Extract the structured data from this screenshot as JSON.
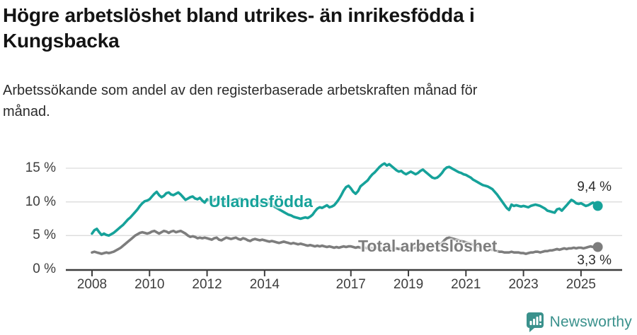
{
  "header": {
    "title_lines": [
      "Högre arbetslöshet bland utrikes- än inrikesfödda i",
      "Kungsbacka"
    ],
    "subtitle_lines": [
      "Arbetssökande som andel av den registerbaserade arbetskraften månad för",
      "månad."
    ]
  },
  "colors": {
    "series1": "#16a29a",
    "series2": "#7d7d7d",
    "grid": "#dcdcdc",
    "axis": "#3d3d3d",
    "title_text": "#141414",
    "logo": "#3a918c"
  },
  "logo": {
    "brand": "Newsworthy",
    "icon": "speech-bubble-bar-chart-icon"
  },
  "chart_data": {
    "type": "line",
    "title": "Högre arbetslöshet bland utrikes- än inrikesfödda i Kungsbacka",
    "subtitle": "Arbetssökande som andel av den registerbaserade arbetskraften månad för månad.",
    "x_unit": "month",
    "x_start": "2008-01",
    "x_end": "2025-08",
    "ylim": [
      0,
      16.5
    ],
    "grid": "horizontal",
    "legend_position": "inline-labels",
    "yticks": [
      {
        "value": 0,
        "label": "0 %"
      },
      {
        "value": 5,
        "label": "5 %"
      },
      {
        "value": 10,
        "label": "10 %"
      },
      {
        "value": 15,
        "label": "15 %"
      }
    ],
    "xticks": [
      {
        "value": 2008,
        "label": "2008"
      },
      {
        "value": 2010,
        "label": "2010"
      },
      {
        "value": 2012,
        "label": "2012"
      },
      {
        "value": 2014,
        "label": "2014"
      },
      {
        "value": 2017,
        "label": "2017"
      },
      {
        "value": 2019,
        "label": "2019"
      },
      {
        "value": 2021,
        "label": "2021"
      },
      {
        "value": 2023,
        "label": "2023"
      },
      {
        "value": 2025,
        "label": "2025"
      }
    ],
    "series": [
      {
        "name": "Utlandsfödda",
        "color": "#16a29a",
        "end_label": "9,4 %",
        "end_value": 9.4,
        "values": [
          5.3,
          5.8,
          6.0,
          5.5,
          5.1,
          5.3,
          5.1,
          5.0,
          5.2,
          5.4,
          5.7,
          6.0,
          6.3,
          6.6,
          7.0,
          7.4,
          7.7,
          8.1,
          8.5,
          8.9,
          9.4,
          9.8,
          10.1,
          10.2,
          10.4,
          10.8,
          11.2,
          11.5,
          11.0,
          10.7,
          10.9,
          11.3,
          11.4,
          11.1,
          11.0,
          11.2,
          11.4,
          11.1,
          10.7,
          10.3,
          10.5,
          10.7,
          10.8,
          10.5,
          10.4,
          10.6,
          10.2,
          9.9,
          10.4,
          10.2,
          10.0,
          10.3,
          10.5,
          10.3,
          10.1,
          9.9,
          10.1,
          10.3,
          10.2,
          10.0,
          10.2,
          10.4,
          10.5,
          10.3,
          10.1,
          10.0,
          10.2,
          10.3,
          10.1,
          9.9,
          9.8,
          10.0,
          10.0,
          9.9,
          9.7,
          9.5,
          9.3,
          9.1,
          8.9,
          8.7,
          8.5,
          8.3,
          8.1,
          8.0,
          7.8,
          7.7,
          7.6,
          7.5,
          7.6,
          7.7,
          7.6,
          7.8,
          8.1,
          8.6,
          9.0,
          9.2,
          9.1,
          9.3,
          9.5,
          9.2,
          9.3,
          9.5,
          9.9,
          10.4,
          11.0,
          11.7,
          12.2,
          12.4,
          12.0,
          11.5,
          11.2,
          11.6,
          12.3,
          12.6,
          12.9,
          13.2,
          13.7,
          14.1,
          14.4,
          14.8,
          15.2,
          15.5,
          15.7,
          15.4,
          15.6,
          15.3,
          15.0,
          14.7,
          14.5,
          14.6,
          14.3,
          14.1,
          14.3,
          14.5,
          14.3,
          14.1,
          14.3,
          14.6,
          14.8,
          14.5,
          14.2,
          13.9,
          13.6,
          13.5,
          13.6,
          13.9,
          14.3,
          14.8,
          15.1,
          15.2,
          15.0,
          14.8,
          14.6,
          14.4,
          14.3,
          14.1,
          14.0,
          13.8,
          13.6,
          13.3,
          13.1,
          12.9,
          12.7,
          12.5,
          12.4,
          12.3,
          12.1,
          11.9,
          11.5,
          11.1,
          10.6,
          10.1,
          9.6,
          9.1,
          8.8,
          9.6,
          9.4,
          9.5,
          9.4,
          9.3,
          9.4,
          9.3,
          9.2,
          9.4,
          9.5,
          9.6,
          9.5,
          9.4,
          9.2,
          9.0,
          8.7,
          8.6,
          8.5,
          8.4,
          8.9,
          9.0,
          8.7,
          9.1,
          9.5,
          9.9,
          10.3,
          10.1,
          9.8,
          9.7,
          9.8,
          9.6,
          9.4,
          9.5,
          9.7,
          9.9,
          9.6,
          9.4
        ]
      },
      {
        "name": "Total arbetslöshet",
        "color": "#7d7d7d",
        "end_label": "3,3 %",
        "end_value": 3.3,
        "values": [
          2.5,
          2.6,
          2.5,
          2.4,
          2.3,
          2.4,
          2.5,
          2.4,
          2.5,
          2.6,
          2.8,
          3.0,
          3.2,
          3.5,
          3.8,
          4.1,
          4.4,
          4.7,
          5.0,
          5.2,
          5.4,
          5.5,
          5.4,
          5.3,
          5.4,
          5.6,
          5.7,
          5.5,
          5.3,
          5.5,
          5.7,
          5.6,
          5.4,
          5.6,
          5.7,
          5.5,
          5.6,
          5.7,
          5.5,
          5.3,
          5.0,
          4.8,
          4.9,
          4.8,
          4.6,
          4.7,
          4.6,
          4.7,
          4.6,
          4.5,
          4.4,
          4.6,
          4.7,
          4.4,
          4.3,
          4.5,
          4.7,
          4.6,
          4.5,
          4.6,
          4.7,
          4.5,
          4.4,
          4.6,
          4.5,
          4.3,
          4.2,
          4.4,
          4.5,
          4.4,
          4.3,
          4.4,
          4.3,
          4.2,
          4.1,
          4.2,
          4.1,
          4.0,
          3.9,
          4.0,
          4.1,
          4.0,
          3.9,
          3.8,
          3.9,
          3.8,
          3.7,
          3.8,
          3.7,
          3.6,
          3.5,
          3.6,
          3.5,
          3.4,
          3.5,
          3.4,
          3.5,
          3.4,
          3.3,
          3.4,
          3.3,
          3.2,
          3.3,
          3.2,
          3.3,
          3.4,
          3.3,
          3.4,
          3.4,
          3.3,
          3.2,
          3.3,
          3.2,
          3.1,
          3.2,
          3.1,
          3.2,
          3.1,
          3.2,
          3.1,
          3.2,
          3.1,
          3.0,
          3.1,
          3.0,
          3.1,
          3.0,
          3.1,
          3.0,
          3.1,
          3.0,
          3.1,
          3.1,
          3.2,
          3.1,
          3.2,
          3.1,
          3.2,
          3.3,
          3.2,
          3.1,
          3.2,
          3.3,
          3.4,
          3.5,
          3.6,
          3.9,
          4.3,
          4.6,
          4.7,
          4.6,
          4.5,
          4.4,
          4.3,
          4.2,
          4.1,
          4.0,
          3.9,
          3.8,
          3.6,
          3.5,
          3.4,
          3.3,
          3.2,
          3.1,
          3.0,
          2.9,
          2.9,
          2.8,
          2.7,
          2.6,
          2.6,
          2.5,
          2.5,
          2.5,
          2.6,
          2.5,
          2.5,
          2.5,
          2.4,
          2.4,
          2.3,
          2.4,
          2.5,
          2.5,
          2.6,
          2.6,
          2.5,
          2.6,
          2.7,
          2.7,
          2.8,
          2.8,
          2.9,
          3.0,
          2.9,
          3.0,
          3.1,
          3.0,
          3.1,
          3.1,
          3.2,
          3.1,
          3.2,
          3.2,
          3.1,
          3.2,
          3.3,
          3.4,
          3.3,
          3.2,
          3.3
        ]
      }
    ]
  }
}
